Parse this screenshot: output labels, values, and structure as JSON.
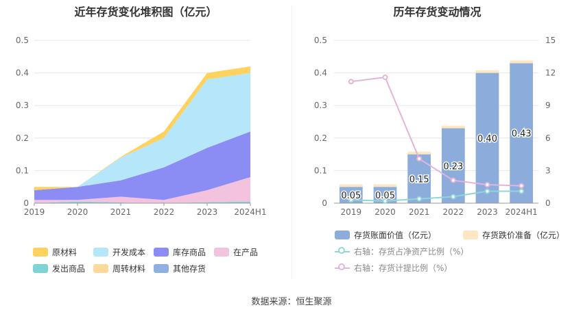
{
  "source": "数据来源：恒生聚源",
  "chart_data": [
    {
      "type": "area",
      "stacked": true,
      "title": "近年存货变化堆积图（亿元）",
      "categories": [
        "2019",
        "2020",
        "2021",
        "2022",
        "2023",
        "2024H1"
      ],
      "ylim": [
        0,
        0.5
      ],
      "yticks": [
        "0",
        "0.1",
        "0.2",
        "0.3",
        "0.4",
        "0.5"
      ],
      "grid": true,
      "legend_position": "bottom",
      "series": [
        {
          "name": "发出商品",
          "color": "#7fd3d5",
          "values": [
            0.0,
            0.005,
            0.002,
            0.0,
            0.003,
            0.005
          ]
        },
        {
          "name": "在产品",
          "color": "#f2c2df",
          "values": [
            0.01,
            0.005,
            0.018,
            0.01,
            0.037,
            0.075
          ]
        },
        {
          "name": "库存商品",
          "color": "#8c8cf5",
          "values": [
            0.03,
            0.04,
            0.05,
            0.1,
            0.13,
            0.14
          ]
        },
        {
          "name": "开发成本",
          "color": "#b6e6fa",
          "values": [
            0.0,
            0.0,
            0.07,
            0.09,
            0.21,
            0.18
          ]
        },
        {
          "name": "原材料",
          "color": "#ffd25f",
          "values": [
            0.01,
            0.0,
            0.002,
            0.02,
            0.02,
            0.02
          ]
        },
        {
          "name": "周转材料",
          "color": "#fdd99a",
          "values": [
            0.0,
            0.0,
            0.0,
            0.0,
            0.0,
            0.0
          ]
        },
        {
          "name": "其他存货",
          "color": "#8fb0e0",
          "values": [
            0.0,
            0.0,
            0.0,
            0.0,
            0.0,
            0.0
          ]
        }
      ],
      "legend_order": [
        "原材料",
        "开发成本",
        "库存商品",
        "在产品",
        "发出商品",
        "周转材料",
        "其他存货"
      ]
    },
    {
      "type": "bar",
      "stacked": true,
      "title": "历年存货变动情况",
      "categories": [
        "2019",
        "2020",
        "2021",
        "2022",
        "2023",
        "2024H1"
      ],
      "ylim": [
        0,
        0.5
      ],
      "yticks": [
        "0",
        "0.1",
        "0.2",
        "0.3",
        "0.4",
        "0.5"
      ],
      "y2lim": [
        0,
        15
      ],
      "y2ticks": [
        "0",
        "3",
        "6",
        "9",
        "12",
        "15"
      ],
      "grid": true,
      "legend_position": "bottom",
      "series": [
        {
          "name": "存货账面价值（亿元）",
          "color": "#8cacdc",
          "type": "bar",
          "values": [
            0.05,
            0.05,
            0.15,
            0.23,
            0.4,
            0.43
          ],
          "labels": [
            "0.05",
            "0.05",
            "0.15",
            "0.23",
            "0.40",
            "0.43"
          ]
        },
        {
          "name": "存货跌价准备（亿元）",
          "color": "#fde6c0",
          "type": "bar",
          "values": [
            0.008,
            0.008,
            0.008,
            0.008,
            0.008,
            0.008
          ]
        },
        {
          "name": "右轴：存货占净资产比例（%）",
          "color": "#8fd7d6",
          "type": "line",
          "axis": "right",
          "values": [
            0.3,
            0.2,
            0.4,
            0.6,
            1.1,
            1.1
          ]
        },
        {
          "name": "右轴：存货计提比例（%）",
          "color": "#e4b4d8",
          "type": "line",
          "axis": "right",
          "values": [
            11.2,
            11.6,
            4.1,
            2.1,
            1.7,
            1.6
          ]
        }
      ]
    }
  ]
}
